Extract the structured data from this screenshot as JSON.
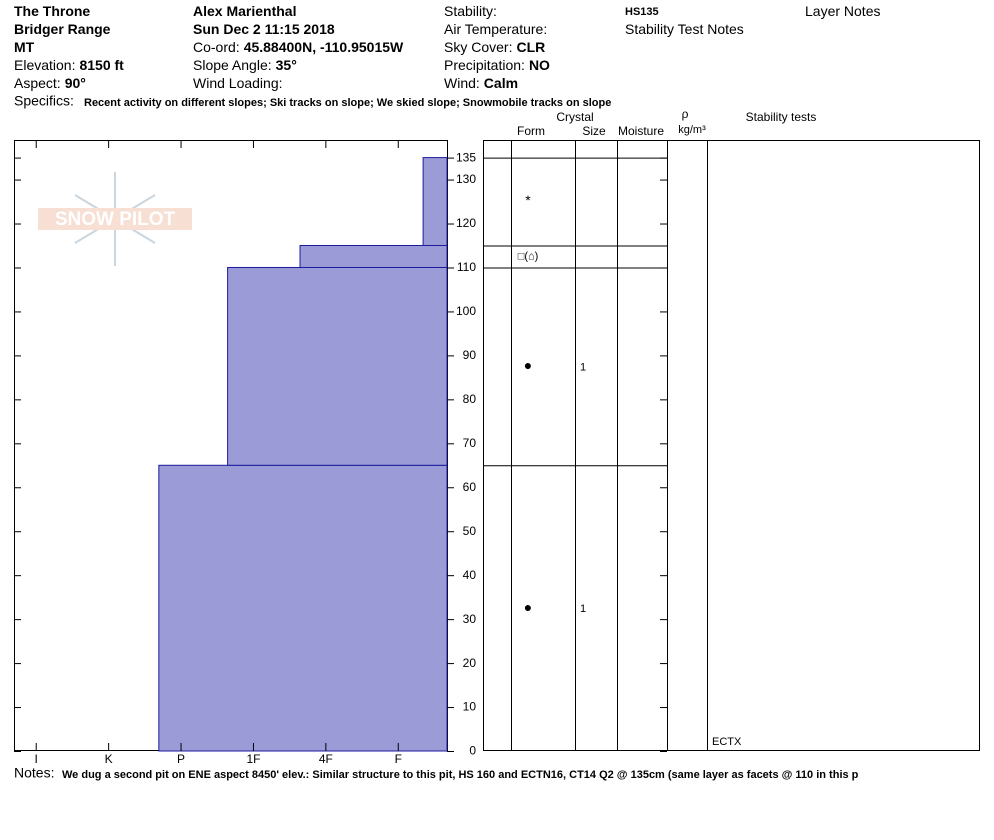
{
  "header": {
    "columns": [
      [
        {
          "value": "The Throne"
        },
        {
          "value": "Bridger Range"
        },
        {
          "value": "MT"
        },
        {
          "label": "Elevation:",
          "value": "8150 ft"
        },
        {
          "label": "Aspect:",
          "value": "90°"
        }
      ],
      [
        {
          "value": "Alex Marienthal"
        },
        {
          "value": "Sun Dec 2 11:15 2018"
        },
        {
          "label": "Co-ord:",
          "value": "45.88400N, -110.95015W"
        },
        {
          "label": "Slope Angle:",
          "value": "35°"
        },
        {
          "label": "Wind Loading:"
        }
      ],
      [
        {
          "label": "Stability:"
        },
        {
          "label": "Air Temperature:"
        },
        {
          "label": "Sky Cover:",
          "value": "CLR"
        },
        {
          "label": "Precipitation:",
          "value": "NO"
        },
        {
          "label": "Wind:",
          "value": "Calm"
        }
      ],
      [
        {
          "value": "HS135"
        },
        {
          "label": "Stability Test Notes"
        }
      ],
      [
        {
          "label": "Layer Notes"
        }
      ]
    ],
    "specifics_label": "Specifics:",
    "specifics": "Recent activity on different slopes; Ski tracks on slope; We skied slope; Snowmobile tracks on slope"
  },
  "logo": "SNOW PILOT",
  "chart_data": {
    "type": "snow-profile",
    "xlim": [
      6.3,
      0.32
    ],
    "xticks": [
      {
        "value": 6,
        "label": "I"
      },
      {
        "value": 5,
        "label": "K"
      },
      {
        "value": 4,
        "label": "P"
      },
      {
        "value": 3,
        "label": "1F"
      },
      {
        "value": 2,
        "label": "4F"
      },
      {
        "value": 1,
        "label": "F"
      }
    ],
    "ylim": [
      0,
      139
    ],
    "yticks": [
      0,
      10,
      20,
      30,
      40,
      50,
      60,
      70,
      80,
      90,
      100,
      110,
      120,
      130,
      135
    ],
    "color": "#9b9bd8",
    "edge_color": "#1c1c9c",
    "layers": [
      {
        "bottom": 0,
        "top": 65,
        "hardness": 4.3,
        "form": "●",
        "size": 1
      },
      {
        "bottom": 65,
        "top": 110,
        "hardness": 3.35,
        "form": "●",
        "size": 1
      },
      {
        "bottom": 110,
        "top": 115,
        "hardness": 2.35,
        "form": "□(⌂)"
      },
      {
        "bottom": 115,
        "top": 135,
        "hardness": 0.65,
        "form": "*"
      }
    ],
    "table_headers": {
      "crystal": "Crystal",
      "form": "Form",
      "size": "Size",
      "moisture": "Moisture",
      "density": "ρ",
      "density_unit": "kg/m³",
      "stability": "Stability tests"
    },
    "stability_tests": [
      "ECTX"
    ]
  },
  "notes_label": "Notes:",
  "notes": "We dug a second pit on ENE aspect 8450' elev.: Similar structure to this pit, HS 160 and ECTN16, CT14 Q2 @ 135cm (same layer as facets @ 110 in this p"
}
